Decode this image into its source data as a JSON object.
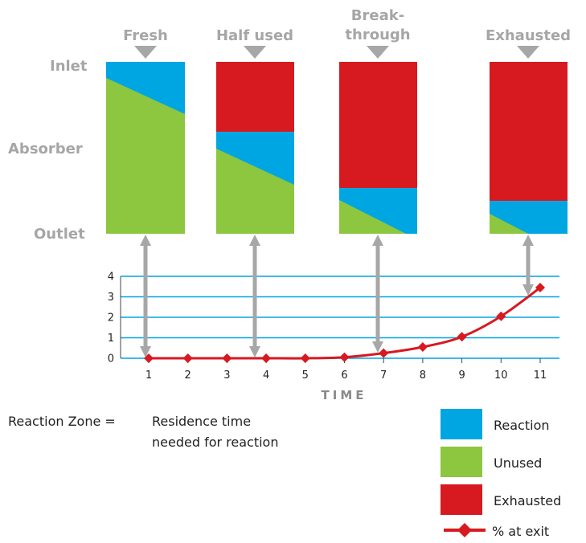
{
  "colors": {
    "reaction": "#00a6e2",
    "unused": "#8dc63f",
    "exhausted": "#d71920",
    "exit_line": "#d71920",
    "grid": "#00a6e2",
    "arrow": "#a7a7a7",
    "label_gray": "#a6a6a6"
  },
  "stages": [
    {
      "title_lines": [
        "Fresh"
      ]
    },
    {
      "title_lines": [
        "Half used"
      ]
    },
    {
      "title_lines": [
        "Break-",
        "through"
      ]
    },
    {
      "title_lines": [
        "Exhausted"
      ]
    }
  ],
  "zone_labels": {
    "inlet": "Inlet",
    "absorber": "Absorber",
    "outlet": "Outlet"
  },
  "note": {
    "lhs": "Reaction Zone =",
    "line1": "Residence time",
    "line2": "needed for reaction"
  },
  "legend": {
    "reaction": "Reaction",
    "unused": "Unused",
    "exhausted": "Exhausted",
    "exit": "% at exit"
  },
  "chart_data": {
    "type": "line",
    "xlabel": "TIME",
    "ylabel": "",
    "x": [
      1,
      2,
      3,
      4,
      5,
      6,
      7,
      8,
      9,
      10,
      11
    ],
    "x_tick_labels": [
      "1",
      "2",
      "3",
      "4",
      "5",
      "6",
      "7",
      "8",
      "9",
      "10",
      "11"
    ],
    "y_tick_labels": [
      "0",
      "1",
      "2",
      "3",
      "4"
    ],
    "ylim": [
      0,
      4
    ],
    "grid": true,
    "series": [
      {
        "name": "% at exit",
        "values": [
          0,
          0,
          0,
          0,
          0,
          0.05,
          0.25,
          0.55,
          1.05,
          2.05,
          3.45
        ]
      }
    ]
  }
}
